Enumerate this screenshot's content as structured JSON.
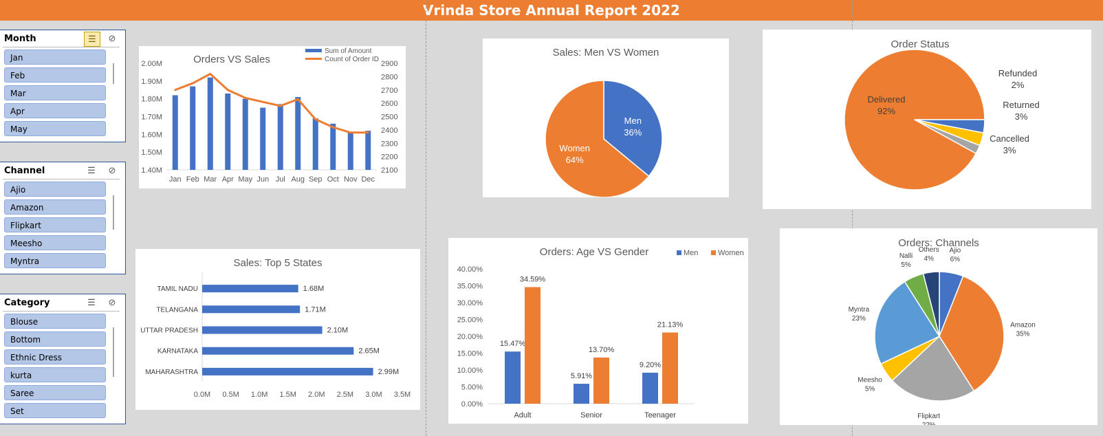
{
  "report_title": "Vrinda Store Annual Report 2022",
  "slicers": {
    "month": {
      "header": "Month",
      "items": [
        "Jan",
        "Feb",
        "Mar",
        "Apr",
        "May"
      ]
    },
    "channel": {
      "header": "Channel",
      "items": [
        "Ajio",
        "Amazon",
        "Flipkart",
        "Meesho",
        "Myntra"
      ]
    },
    "category": {
      "header": "Category",
      "items": [
        "Blouse",
        "Bottom",
        "Ethnic Dress",
        "kurta",
        "Saree",
        "Set"
      ]
    }
  },
  "icons": {
    "multi_select": "multi-select-icon",
    "clear_filter": "clear-filter-icon"
  },
  "colors": {
    "header_bar": "#ed7d31",
    "blue": "#4472c4",
    "orange": "#ed7d31",
    "grey": "#a5a5a5",
    "yellow": "#ffc000",
    "light_blue": "#5b9bd5",
    "green": "#70ad47",
    "navy": "#264478",
    "slicer_item": "#b4c7e7"
  },
  "chart_data": [
    {
      "id": "orders_vs_sales",
      "type": "bar",
      "title": "Orders VS Sales",
      "categories": [
        "Jan",
        "Feb",
        "Mar",
        "Apr",
        "May",
        "Jun",
        "Jul",
        "Aug",
        "Sep",
        "Oct",
        "Nov",
        "Dec"
      ],
      "series": [
        {
          "name": "Sum of Amount",
          "type": "bar",
          "axis": "left",
          "values": [
            1.82,
            1.87,
            1.92,
            1.83,
            1.8,
            1.75,
            1.77,
            1.81,
            1.69,
            1.66,
            1.61,
            1.62
          ]
        },
        {
          "name": "Count of Order ID",
          "type": "line",
          "axis": "right",
          "values": [
            2700,
            2750,
            2820,
            2700,
            2640,
            2610,
            2580,
            2630,
            2480,
            2420,
            2380,
            2380
          ]
        }
      ],
      "y_left": {
        "ticks": [
          "1.40M",
          "1.50M",
          "1.60M",
          "1.70M",
          "1.80M",
          "1.90M",
          "2.00M"
        ],
        "ylim": [
          1.4,
          2.0
        ]
      },
      "y_right": {
        "ticks": [
          "2100",
          "2200",
          "2300",
          "2400",
          "2500",
          "2600",
          "2700",
          "2800",
          "2900"
        ],
        "ylim": [
          2100,
          2900
        ]
      },
      "legend": "top-right"
    },
    {
      "id": "top5_states",
      "type": "bar",
      "orientation": "horizontal",
      "title": "Sales: Top 5 States",
      "categories": [
        "TAMIL NADU",
        "TELANGANA",
        "UTTAR PRADESH",
        "KARNATAKA",
        "MAHARASHTRA"
      ],
      "values": [
        1.68,
        1.71,
        2.1,
        2.65,
        2.99
      ],
      "labels": [
        "1.68M",
        "1.71M",
        "2.10M",
        "2.65M",
        "2.99M"
      ],
      "x_ticks": [
        "0.0M",
        "0.5M",
        "1.0M",
        "1.5M",
        "2.0M",
        "2.5M",
        "3.0M",
        "3.5M"
      ],
      "xlim": [
        0,
        3.5
      ]
    },
    {
      "id": "men_vs_women",
      "type": "pie",
      "title": "Sales: Men VS Women",
      "slices": [
        {
          "label": "Men",
          "value": 36,
          "pct": "36%",
          "color": "#4472c4"
        },
        {
          "label": "Women",
          "value": 64,
          "pct": "64%",
          "color": "#ed7d31"
        }
      ]
    },
    {
      "id": "age_vs_gender",
      "type": "bar",
      "title": "Orders: Age VS Gender",
      "categories": [
        "Adult",
        "Senior",
        "Teenager"
      ],
      "series": [
        {
          "name": "Men",
          "values": [
            15.47,
            5.91,
            9.2
          ],
          "labels": [
            "15.47%",
            "5.91%",
            "9.20%"
          ],
          "color": "#4472c4"
        },
        {
          "name": "Women",
          "values": [
            34.59,
            13.7,
            21.13
          ],
          "labels": [
            "34.59%",
            "13.70%",
            "21.13%"
          ],
          "color": "#ed7d31"
        }
      ],
      "y_ticks": [
        "0.00%",
        "5.00%",
        "10.00%",
        "15.00%",
        "20.00%",
        "25.00%",
        "30.00%",
        "35.00%",
        "40.00%"
      ],
      "ylim": [
        0,
        40
      ],
      "legend": "top-right"
    },
    {
      "id": "order_status",
      "type": "pie",
      "title": "Order Status",
      "slices": [
        {
          "label": "Delivered",
          "value": 92,
          "pct": "92%",
          "color": "#ed7d31"
        },
        {
          "label": "Refunded",
          "value": 2,
          "pct": "2%",
          "color": "#a5a5a5"
        },
        {
          "label": "Returned",
          "value": 3,
          "pct": "3%",
          "color": "#ffc000"
        },
        {
          "label": "Cancelled",
          "value": 3,
          "pct": "3%",
          "color": "#4472c4"
        }
      ]
    },
    {
      "id": "orders_channels",
      "type": "pie",
      "title": "Orders: Channels",
      "slices": [
        {
          "label": "Ajio",
          "value": 6,
          "pct": "6%",
          "color": "#4472c4"
        },
        {
          "label": "Amazon",
          "value": 35,
          "pct": "35%",
          "color": "#ed7d31"
        },
        {
          "label": "Flipkart",
          "value": 22,
          "pct": "22%",
          "color": "#a5a5a5"
        },
        {
          "label": "Meesho",
          "value": 5,
          "pct": "5%",
          "color": "#ffc000"
        },
        {
          "label": "Myntra",
          "value": 23,
          "pct": "23%",
          "color": "#5b9bd5"
        },
        {
          "label": "Nalli",
          "value": 5,
          "pct": "5%",
          "color": "#70ad47"
        },
        {
          "label": "Others",
          "value": 4,
          "pct": "4%",
          "color": "#264478"
        }
      ]
    }
  ]
}
